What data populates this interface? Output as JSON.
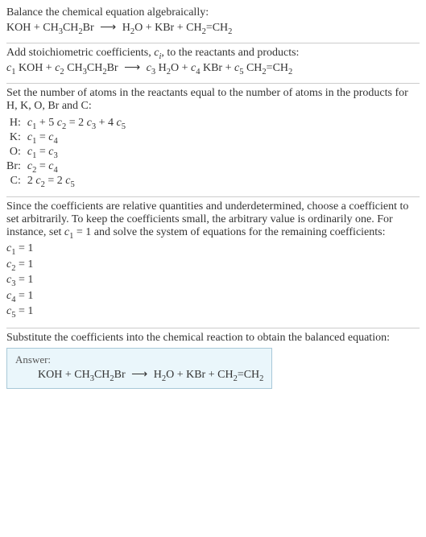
{
  "section1": {
    "intro": "Balance the chemical equation algebraically:",
    "lhs1": "KOH + CH",
    "lhs2": "3",
    "lhs3": "CH",
    "lhs4": "2",
    "lhs5": "Br",
    "arrow": "⟶",
    "rhs1": "H",
    "rhs2": "2",
    "rhs3": "O + KBr + CH",
    "rhs4": "2",
    "rhs5": "=CH",
    "rhs6": "2"
  },
  "section2": {
    "intro1": "Add stoichiometric coefficients, ",
    "ci": "c",
    "ci_sub": "i",
    "intro2": ", to the reactants and products:",
    "c1": "c",
    "c1s": "1",
    "t1": " KOH + ",
    "c2": "c",
    "c2s": "2",
    "t2": " CH",
    "t2a": "3",
    "t2b": "CH",
    "t2c": "2",
    "t2d": "Br",
    "arrow": "⟶",
    "c3": "c",
    "c3s": "3",
    "t3": " H",
    "t3a": "2",
    "t3b": "O + ",
    "c4": "c",
    "c4s": "4",
    "t4": " KBr + ",
    "c5": "c",
    "c5s": "5",
    "t5": " CH",
    "t5a": "2",
    "t5b": "=CH",
    "t5c": "2"
  },
  "section3": {
    "intro": "Set the number of atoms in the reactants equal to the number of atoms in the products for H, K, O, Br and C:",
    "rows": [
      {
        "label": "H:",
        "eq_parts": [
          "c",
          "1",
          " + 5 ",
          "c",
          "2",
          " = 2 ",
          "c",
          "3",
          " + 4 ",
          "c",
          "5"
        ]
      },
      {
        "label": "K:",
        "eq_parts": [
          "c",
          "1",
          " = ",
          "c",
          "4"
        ]
      },
      {
        "label": "O:",
        "eq_parts": [
          "c",
          "1",
          " = ",
          "c",
          "3"
        ]
      },
      {
        "label": "Br:",
        "eq_parts": [
          "c",
          "2",
          " = ",
          "c",
          "4"
        ]
      },
      {
        "label": "C:",
        "eq_parts": [
          "2 ",
          "c",
          "2",
          " = 2 ",
          "c",
          "5"
        ]
      }
    ]
  },
  "section4": {
    "intro": "Since the coefficients are relative quantities and underdetermined, choose a coefficient to set arbitrarily. To keep the coefficients small, the arbitrary value is ordinarily one. For instance, set ",
    "c1": "c",
    "c1s": "1",
    "intro2": " = 1 and solve the system of equations for the remaining coefficients:",
    "lines": [
      {
        "c": "c",
        "s": "1",
        "v": " = 1"
      },
      {
        "c": "c",
        "s": "2",
        "v": " = 1"
      },
      {
        "c": "c",
        "s": "3",
        "v": " = 1"
      },
      {
        "c": "c",
        "s": "4",
        "v": " = 1"
      },
      {
        "c": "c",
        "s": "5",
        "v": " = 1"
      }
    ]
  },
  "section5": {
    "intro": "Substitute the coefficients into the chemical reaction to obtain the balanced equation:",
    "answer_label": "Answer:",
    "lhs1": "KOH + CH",
    "lhs2": "3",
    "lhs3": "CH",
    "lhs4": "2",
    "lhs5": "Br",
    "arrow": "⟶",
    "rhs1": "H",
    "rhs2": "2",
    "rhs3": "O + KBr + CH",
    "rhs4": "2",
    "rhs5": "=CH",
    "rhs6": "2"
  }
}
